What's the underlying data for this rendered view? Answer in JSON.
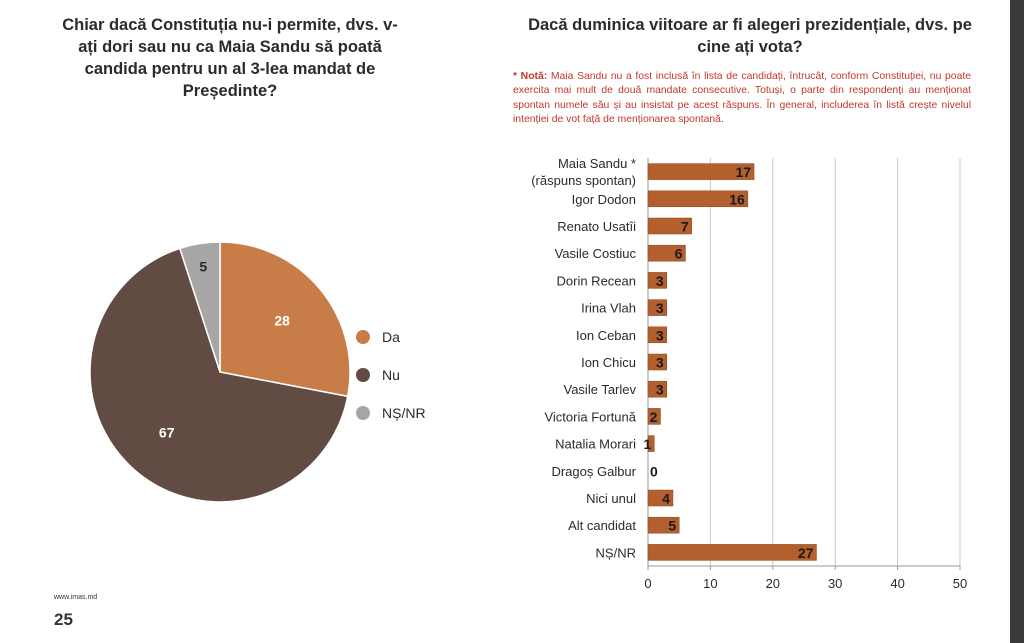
{
  "page": {
    "number": "25",
    "source": "www.imas.md"
  },
  "colors": {
    "da": "#c87d48",
    "nu": "#614b42",
    "nsnr": "#a6a6a6",
    "bar": "#b35f2e",
    "note": "#c0392b"
  },
  "chart_data": [
    {
      "type": "pie",
      "title": "Chiar dacă Constituția nu-i permite, dvs. v-ați dori sau nu ca Maia Sandu să poată candida pentru un al 3-lea mandat de Președinte?",
      "categories": [
        "Da",
        "Nu",
        "NȘ/NR"
      ],
      "values": [
        28,
        67,
        5
      ],
      "legend": "right"
    },
    {
      "type": "bar",
      "orientation": "horizontal",
      "title": "Dacă duminica viitoare ar fi alegeri prezidențiale, dvs. pe cine ați vota?",
      "note_marker": "* Notă:",
      "note": "Maia Sandu nu a fost inclusă în lista de candidați, întrucât, conform Constituției, nu poate exercita mai mult de două mandate consecutive. Totuși, o parte din respondenți au menționat spontan numele său și au insistat pe acest răspuns. În general, includerea în listă crește nivelul intenției de vot față de menționarea spontană.",
      "categories": [
        [
          "Maia Sandu *",
          "(răspuns spontan)"
        ],
        [
          "Igor Dodon"
        ],
        [
          "Renato Usatîi"
        ],
        [
          "Vasile Costiuc"
        ],
        [
          "Dorin Recean"
        ],
        [
          "Irina Vlah"
        ],
        [
          "Ion Ceban"
        ],
        [
          "Ion Chicu"
        ],
        [
          "Vasile Tarlev"
        ],
        [
          "Victoria Fortună"
        ],
        [
          "Natalia Morari"
        ],
        [
          "Dragoș Galbur"
        ],
        [
          "Nici unul"
        ],
        [
          "Alt candidat"
        ],
        [
          "NȘ/NR"
        ]
      ],
      "values": [
        17,
        16,
        7,
        6,
        3,
        3,
        3,
        3,
        3,
        2,
        1,
        0,
        4,
        5,
        27
      ],
      "xlim": [
        0,
        50
      ],
      "xticks": [
        0,
        10,
        20,
        30,
        40,
        50
      ],
      "grid": true
    }
  ]
}
